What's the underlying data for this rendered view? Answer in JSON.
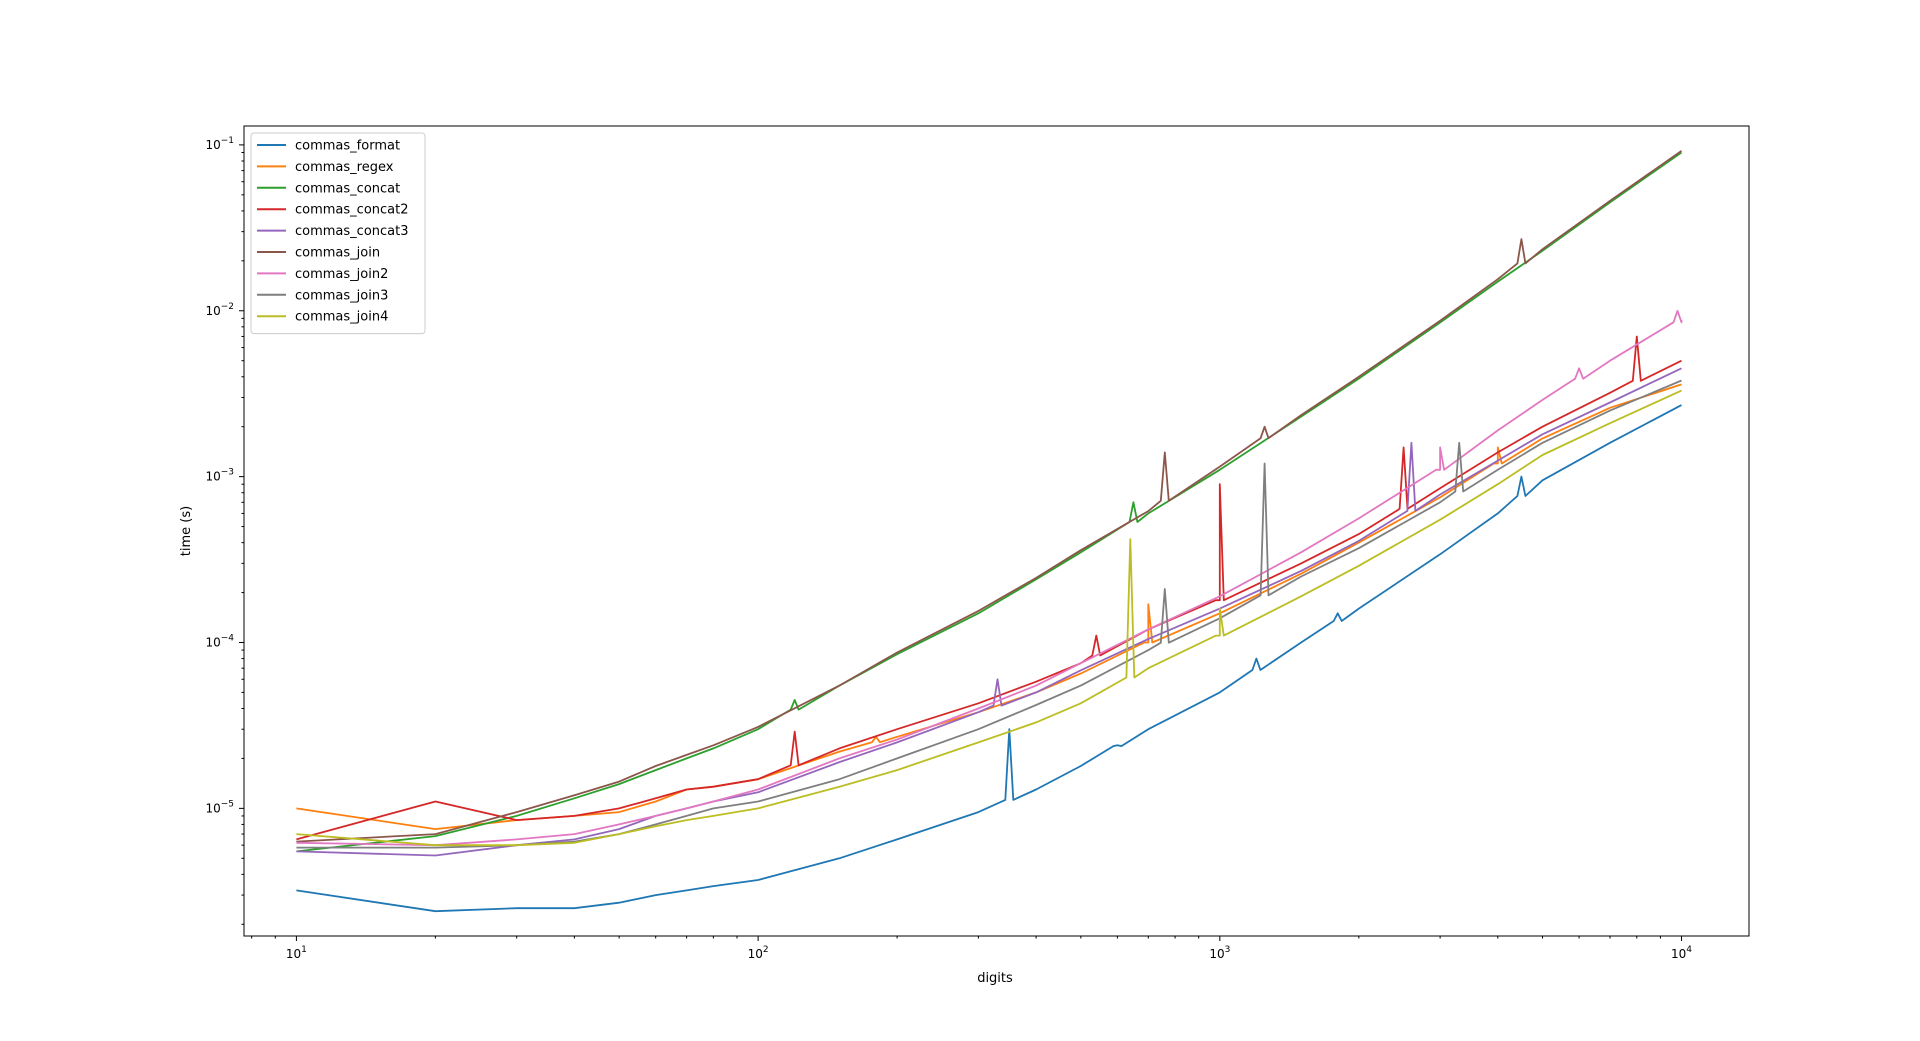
{
  "chart_data": {
    "type": "line",
    "title": "",
    "xlabel": "digits",
    "ylabel": "time (s)",
    "xscale": "log",
    "yscale": "log",
    "xlim": [
      7.7,
      14000
    ],
    "ylim": [
      1.7e-06,
      0.13
    ],
    "grid": false,
    "legend_position": "top-left",
    "x_ticks": [
      {
        "value": 10,
        "base": "10",
        "exp": "1"
      },
      {
        "value": 100,
        "base": "10",
        "exp": "2"
      },
      {
        "value": 1000,
        "base": "10",
        "exp": "3"
      },
      {
        "value": 10000,
        "base": "10",
        "exp": "4"
      }
    ],
    "y_ticks": [
      {
        "value": 1e-05,
        "base": "10",
        "exp": "−5"
      },
      {
        "value": 0.0001,
        "base": "10",
        "exp": "−4"
      },
      {
        "value": 0.001,
        "base": "10",
        "exp": "−3"
      },
      {
        "value": 0.01,
        "base": "10",
        "exp": "−2"
      },
      {
        "value": 0.1,
        "base": "10",
        "exp": "−1"
      }
    ],
    "x": [
      10,
      20,
      30,
      40,
      50,
      60,
      70,
      80,
      100,
      150,
      200,
      300,
      400,
      500,
      700,
      1000,
      1500,
      2000,
      3000,
      4000,
      5000,
      7000,
      10000
    ],
    "series": [
      {
        "name": "commas_format",
        "color": "#1f77b4",
        "values": [
          3.2e-06,
          2.4e-06,
          2.5e-06,
          2.5e-06,
          2.7e-06,
          3e-06,
          3.2e-06,
          3.4e-06,
          3.7e-06,
          5e-06,
          6.5e-06,
          9.5e-06,
          1.3e-05,
          1.8e-05,
          3e-05,
          5e-05,
          0.0001,
          0.00016,
          0.00034,
          0.0006,
          0.00095,
          0.0016,
          0.0027
        ],
        "spikes": [
          {
            "x": 350,
            "y": 3e-05
          },
          {
            "x": 600,
            "y": 2.4e-05
          },
          {
            "x": 1200,
            "y": 8e-05
          },
          {
            "x": 1800,
            "y": 0.00015
          },
          {
            "x": 4500,
            "y": 0.001
          }
        ]
      },
      {
        "name": "commas_regex",
        "color": "#ff7f0e",
        "values": [
          1e-05,
          7.5e-06,
          8.5e-06,
          9e-06,
          9.5e-06,
          1.1e-05,
          1.3e-05,
          1.35e-05,
          1.5e-05,
          2.2e-05,
          2.7e-05,
          3.8e-05,
          5e-05,
          6.5e-05,
          0.0001,
          0.00015,
          0.00026,
          0.0004,
          0.00075,
          0.0012,
          0.0017,
          0.0026,
          0.0036
        ],
        "spikes": [
          {
            "x": 180,
            "y": 2.7e-05
          },
          {
            "x": 700,
            "y": 0.00017
          },
          {
            "x": 4000,
            "y": 0.0015
          }
        ]
      },
      {
        "name": "commas_concat",
        "color": "#2ca02c",
        "values": [
          5.5e-06,
          6.8e-06,
          9e-06,
          1.15e-05,
          1.4e-05,
          1.7e-05,
          2e-05,
          2.3e-05,
          3e-05,
          5.5e-05,
          8.5e-05,
          0.00015,
          0.00024,
          0.00035,
          0.0006,
          0.0011,
          0.0023,
          0.0039,
          0.0085,
          0.015,
          0.023,
          0.045,
          0.09
        ],
        "spikes": [
          {
            "x": 120,
            "y": 4.5e-05
          },
          {
            "x": 650,
            "y": 0.0007
          }
        ]
      },
      {
        "name": "commas_concat2",
        "color": "#d62728",
        "values": [
          6.5e-06,
          1.1e-05,
          8.5e-06,
          9e-06,
          1e-05,
          1.15e-05,
          1.3e-05,
          1.35e-05,
          1.5e-05,
          2.3e-05,
          3e-05,
          4.3e-05,
          5.8e-05,
          7.5e-05,
          0.00012,
          0.00018,
          0.0003,
          0.00045,
          0.00085,
          0.0014,
          0.002,
          0.0032,
          0.005
        ],
        "spikes": [
          {
            "x": 120,
            "y": 2.9e-05
          },
          {
            "x": 540,
            "y": 0.00011
          },
          {
            "x": 1000,
            "y": 0.0009
          },
          {
            "x": 2500,
            "y": 0.0015
          },
          {
            "x": 8000,
            "y": 0.007
          }
        ]
      },
      {
        "name": "commas_concat3",
        "color": "#9467bd",
        "values": [
          5.5e-06,
          5.2e-06,
          6e-06,
          6.5e-06,
          7.5e-06,
          9e-06,
          1e-05,
          1.1e-05,
          1.25e-05,
          1.9e-05,
          2.5e-05,
          3.8e-05,
          5e-05,
          6.8e-05,
          0.000105,
          0.00016,
          0.00027,
          0.00041,
          0.00078,
          0.00125,
          0.0018,
          0.0028,
          0.0045
        ],
        "spikes": [
          {
            "x": 330,
            "y": 6e-05
          },
          {
            "x": 2600,
            "y": 0.0016
          }
        ]
      },
      {
        "name": "commas_join",
        "color": "#8c564b",
        "values": [
          6.3e-06,
          7e-06,
          9.5e-06,
          1.2e-05,
          1.45e-05,
          1.8e-05,
          2.1e-05,
          2.4e-05,
          3.1e-05,
          5.5e-05,
          8.7e-05,
          0.000155,
          0.000245,
          0.00036,
          0.00062,
          0.00115,
          0.00235,
          0.004,
          0.0087,
          0.0155,
          0.0235,
          0.046,
          0.092
        ],
        "spikes": [
          {
            "x": 760,
            "y": 0.0014
          },
          {
            "x": 1250,
            "y": 0.002
          },
          {
            "x": 4500,
            "y": 0.027
          }
        ]
      },
      {
        "name": "commas_join2",
        "color": "#e377c2",
        "values": [
          6.2e-06,
          6e-06,
          6.5e-06,
          7e-06,
          8e-06,
          9e-06,
          1e-05,
          1.1e-05,
          1.3e-05,
          2e-05,
          2.6e-05,
          4e-05,
          5.5e-05,
          7.5e-05,
          0.00012,
          0.00019,
          0.00035,
          0.00056,
          0.0011,
          0.0019,
          0.0029,
          0.005,
          0.0088
        ],
        "spikes": [
          {
            "x": 3000,
            "y": 0.0015
          },
          {
            "x": 6000,
            "y": 0.0045
          },
          {
            "x": 9800,
            "y": 0.01
          }
        ]
      },
      {
        "name": "commas_join3",
        "color": "#7f7f7f",
        "values": [
          5.8e-06,
          5.8e-06,
          6e-06,
          6.3e-06,
          7e-06,
          8e-06,
          9e-06,
          1e-05,
          1.1e-05,
          1.5e-05,
          2e-05,
          3e-05,
          4.2e-05,
          5.5e-05,
          9e-05,
          0.00014,
          0.00025,
          0.00037,
          0.0007,
          0.0011,
          0.0016,
          0.0025,
          0.0038
        ],
        "spikes": [
          {
            "x": 760,
            "y": 0.00021
          },
          {
            "x": 1250,
            "y": 0.0012
          },
          {
            "x": 3300,
            "y": 0.0016
          }
        ]
      },
      {
        "name": "commas_join4",
        "color": "#bcbd22",
        "values": [
          7e-06,
          6e-06,
          6e-06,
          6.2e-06,
          7e-06,
          7.8e-06,
          8.5e-06,
          9e-06,
          1e-05,
          1.35e-05,
          1.7e-05,
          2.5e-05,
          3.3e-05,
          4.3e-05,
          7e-05,
          0.00011,
          0.00019,
          0.00029,
          0.00055,
          0.0009,
          0.00135,
          0.0021,
          0.0033
        ],
        "spikes": [
          {
            "x": 640,
            "y": 0.00042
          },
          {
            "x": 1000,
            "y": 0.00016
          }
        ]
      }
    ]
  }
}
